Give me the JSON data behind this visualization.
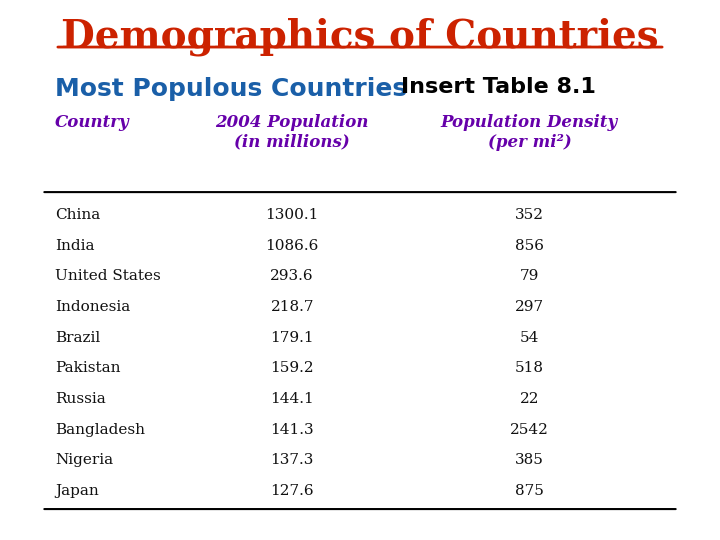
{
  "title": "Demographics of Countries",
  "title_color": "#CC2200",
  "subtitle": "Most Populous Countries",
  "subtitle_color": "#1a5fa8",
  "insert_label": "Insert Table 8.1",
  "insert_color": "#000000",
  "col_header_country": "Country",
  "col_header_pop": "2004 Population\n(in millions)",
  "col_header_dens": "Population Density\n(per mi²)",
  "header_color": "#6600aa",
  "countries": [
    "China",
    "India",
    "United States",
    "Indonesia",
    "Brazil",
    "Pakistan",
    "Russia",
    "Bangladesh",
    "Nigeria",
    "Japan"
  ],
  "populations": [
    "1300.1",
    "1086.6",
    "293.6",
    "218.7",
    "179.1",
    "159.2",
    "144.1",
    "141.3",
    "137.3",
    "127.6"
  ],
  "densities": [
    "352",
    "856",
    "79",
    "297",
    "54",
    "518",
    "22",
    "2542",
    "385",
    "875"
  ],
  "bg_color": "#ffffff",
  "text_color": "#111111",
  "line_color": "#000000"
}
